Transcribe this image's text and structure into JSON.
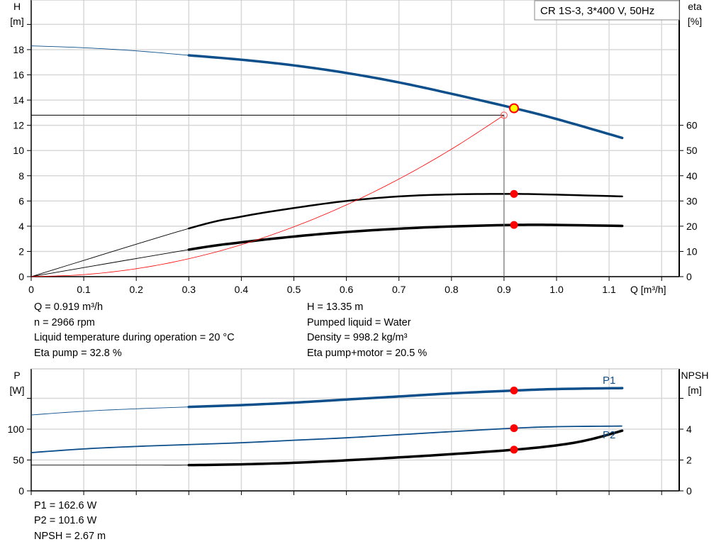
{
  "title_box": "CR 1S-3, 3*400 V, 50Hz",
  "colors": {
    "h_curve": "#0d4f8b",
    "eta": "#000000",
    "system_curve": "#ff0000",
    "grid": "#d8d8d8",
    "op_point_fill": "#ffff00",
    "marker": "#ff0000"
  },
  "info_top": {
    "left": [
      "Q = 0.919 m³/h",
      "n = 2966 rpm",
      "Liquid temperature during operation = 20 °C",
      "Eta pump = 32.8 %"
    ],
    "right": [
      "H = 13.35 m",
      "Pumped liquid = Water",
      "Density = 998.2 kg/m³",
      "Eta pump+motor = 20.5 %"
    ]
  },
  "info_bottom": [
    "P1 = 162.6 W",
    "P2 = 101.6 W",
    "NPSH = 2.67 m"
  ],
  "chart_data": [
    {
      "type": "line",
      "xlabel": "Q [m³/h]",
      "ylabel": "H\n[m]",
      "y2label": "eta\n[%]",
      "xlim": [
        0,
        1.23
      ],
      "ylim": [
        0,
        20
      ],
      "y2lim": [
        0,
        100
      ],
      "xticks": [
        "0",
        "0.1",
        "0.2",
        "0.3",
        "0.4",
        "0.5",
        "0.6",
        "0.7",
        "0.8",
        "0.9",
        "1.0",
        "1.1"
      ],
      "yticks": [
        "0",
        "2",
        "4",
        "6",
        "8",
        "10",
        "12",
        "14",
        "16",
        "18"
      ],
      "y2ticks": [
        "0",
        "10",
        "20",
        "30",
        "40",
        "50",
        "60"
      ],
      "grid": true,
      "series": [
        {
          "id": "H",
          "axis": "left",
          "color": "#0d4f8b",
          "thin_until": 0.3,
          "points": [
            [
              0,
              18.3
            ],
            [
              0.1,
              18.15
            ],
            [
              0.2,
              17.9
            ],
            [
              0.3,
              17.55
            ],
            [
              0.4,
              17.2
            ],
            [
              0.5,
              16.75
            ],
            [
              0.6,
              16.15
            ],
            [
              0.7,
              15.4
            ],
            [
              0.8,
              14.5
            ],
            [
              0.92,
              13.35
            ],
            [
              1.0,
              12.5
            ],
            [
              1.125,
              11.0
            ]
          ]
        },
        {
          "id": "eta_pump",
          "axis": "right",
          "color": "#000000",
          "thin_until": 0.3,
          "points": [
            [
              0,
              0
            ],
            [
              0.3,
              19.1
            ],
            [
              0.4,
              23.8
            ],
            [
              0.5,
              27.2
            ],
            [
              0.6,
              30.0
            ],
            [
              0.7,
              31.8
            ],
            [
              0.8,
              32.6
            ],
            [
              0.92,
              32.8
            ],
            [
              1.0,
              32.5
            ],
            [
              1.125,
              31.8
            ]
          ]
        },
        {
          "id": "eta_total",
          "axis": "right",
          "color": "#000000",
          "thin_until": 0.3,
          "points": [
            [
              0,
              0
            ],
            [
              0.3,
              10.7
            ],
            [
              0.4,
              13.6
            ],
            [
              0.5,
              15.9
            ],
            [
              0.6,
              17.7
            ],
            [
              0.7,
              19.0
            ],
            [
              0.8,
              19.9
            ],
            [
              0.92,
              20.5
            ],
            [
              1.0,
              20.5
            ],
            [
              1.125,
              20.1
            ]
          ]
        },
        {
          "id": "system_curve",
          "axis": "left",
          "color": "#ff0000",
          "thin_until": 1.0,
          "points": [
            [
              0,
              0
            ],
            [
              0.1,
              0.16
            ],
            [
              0.2,
              0.63
            ],
            [
              0.3,
              1.42
            ],
            [
              0.4,
              2.53
            ],
            [
              0.5,
              3.95
            ],
            [
              0.6,
              5.69
            ],
            [
              0.7,
              7.74
            ],
            [
              0.8,
              10.11
            ],
            [
              0.9,
              12.8
            ]
          ]
        }
      ],
      "duty_point": {
        "q": 0.919,
        "h": 13.35,
        "eta_pump": 32.8,
        "eta_total": 20.5
      },
      "required_point": {
        "q": 0.9,
        "h": 12.8
      }
    },
    {
      "type": "line",
      "ylabel": "P\n[W]",
      "y2label": "NPSH\n[m]",
      "xlim": [
        0,
        1.23
      ],
      "ylim": [
        0,
        195
      ],
      "y2lim": [
        0,
        7.8
      ],
      "yticks": [
        "0",
        "50",
        "100"
      ],
      "y2ticks": [
        "0",
        "2",
        "4"
      ],
      "grid": true,
      "series": [
        {
          "id": "P1",
          "name": "P1",
          "axis": "left",
          "color": "#0d4f8b",
          "thin_until": 0.3,
          "points": [
            [
              0,
              123
            ],
            [
              0.1,
              129
            ],
            [
              0.2,
              133
            ],
            [
              0.3,
              136
            ],
            [
              0.4,
              139
            ],
            [
              0.5,
              143
            ],
            [
              0.6,
              148
            ],
            [
              0.7,
              153
            ],
            [
              0.8,
              158
            ],
            [
              0.92,
              162.6
            ],
            [
              1.0,
              165
            ],
            [
              1.125,
              166.5
            ]
          ]
        },
        {
          "id": "P2",
          "name": "P2",
          "axis": "left",
          "color": "#0d4f8b",
          "thin_until": 1.2,
          "points": [
            [
              0,
              62
            ],
            [
              0.1,
              68
            ],
            [
              0.2,
              72
            ],
            [
              0.3,
              75
            ],
            [
              0.4,
              78
            ],
            [
              0.5,
              82
            ],
            [
              0.6,
              86
            ],
            [
              0.7,
              91
            ],
            [
              0.8,
              96
            ],
            [
              0.92,
              101.6
            ],
            [
              1.0,
              104
            ],
            [
              1.125,
              105
            ]
          ]
        },
        {
          "id": "NPSH",
          "axis": "right",
          "color": "#000000",
          "thin_until": 0.3,
          "points": [
            [
              0,
              1.67
            ],
            [
              0.2,
              1.67
            ],
            [
              0.3,
              1.67
            ],
            [
              0.4,
              1.72
            ],
            [
              0.5,
              1.82
            ],
            [
              0.6,
              1.98
            ],
            [
              0.7,
              2.17
            ],
            [
              0.8,
              2.38
            ],
            [
              0.92,
              2.67
            ],
            [
              1.0,
              2.95
            ],
            [
              1.06,
              3.3
            ],
            [
              1.125,
              3.9
            ]
          ]
        }
      ],
      "duty_point": {
        "q": 0.919,
        "p1": 162.6,
        "p2": 101.6,
        "npsh": 2.67
      }
    }
  ]
}
